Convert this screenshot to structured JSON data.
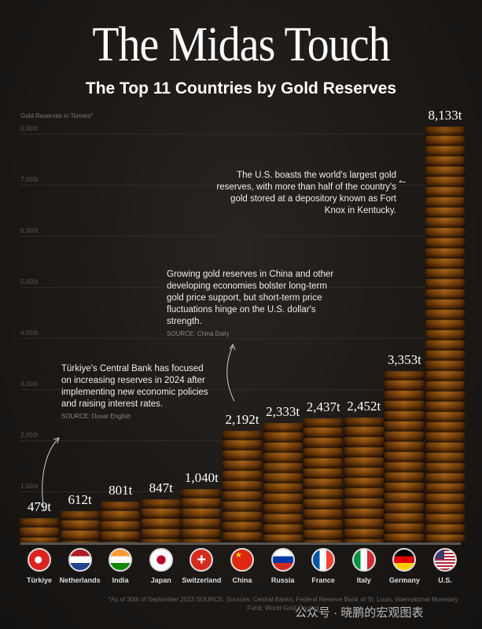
{
  "title": "The Midas Touch",
  "subtitle": "The Top 11 Countries by Gold Reserves",
  "chart_data": {
    "type": "bar",
    "title": "The Midas Touch",
    "subtitle": "The Top 11 Countries by Gold Reserves",
    "ylabel": "Gold Reserves in Tonnes*",
    "xlabel": "",
    "ylim": [
      0,
      8000
    ],
    "yticks": [
      1000,
      2000,
      3000,
      4000,
      5000,
      6000,
      7000,
      8000
    ],
    "ytick_labels": [
      "1,000t",
      "2,000t",
      "3,000t",
      "4,000t",
      "5,000t",
      "6,000t",
      "7,000t",
      "8,000t"
    ],
    "grid": true,
    "categories": [
      "Türkiye",
      "Netherlands",
      "India",
      "Japan",
      "Switzerland",
      "China",
      "Russia",
      "France",
      "Italy",
      "Germany",
      "U.S."
    ],
    "values": [
      479,
      612,
      801,
      847,
      1040,
      2192,
      2333,
      2437,
      2452,
      3353,
      8133
    ],
    "value_labels": [
      "479t",
      "612t",
      "801t",
      "847t",
      "1,040t",
      "2,192t",
      "2,333t",
      "2,437t",
      "2,452t",
      "3,353t",
      "8,133t"
    ]
  },
  "annotations": {
    "us": "The U.S. boasts the world's largest gold reserves, with more than half of the country's gold stored at a depository known as Fort Knox in Kentucky.",
    "china": "Growing gold reserves in China and other developing economies bolster long-term gold price support, but short-term price fluctuations hinge on the U.S. dollar's strength.",
    "china_source": "SOURCE: China Daily",
    "turkiye": "Türkiye's Central Bank has focused on increasing reserves in 2024 after implementing new economic policies and raising interest rates.",
    "turkiye_source": "SOURCE: Duvar English"
  },
  "footnote": "*As of 30th of September 2023 SOURCE: Sources: Central Banks, Federal Reserve Bank of St. Louis, International Monetary Fund, World Gold Council",
  "watermark": "公众号 · 晓鹏的宏观图表"
}
